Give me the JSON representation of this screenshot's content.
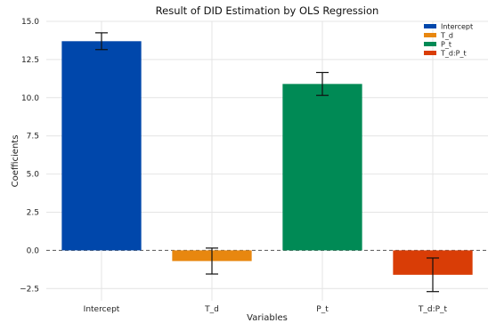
{
  "chart_data": {
    "type": "bar",
    "title": "Result of DID Estimation by OLS Regression",
    "xlabel": "Variables",
    "ylabel": "Coefficients",
    "categories": [
      "Intercept",
      "T_d",
      "P_t",
      "T_d:P_t"
    ],
    "values": [
      13.7,
      -0.7,
      10.9,
      -1.6
    ],
    "error": [
      0.55,
      0.85,
      0.75,
      1.1
    ],
    "colors": [
      "#0047ab",
      "#e8870f",
      "#008a55",
      "#d93d06"
    ],
    "ylim": [
      -3.3,
      15.0
    ],
    "yticks": [
      -2.5,
      0.0,
      2.5,
      5.0,
      7.5,
      10.0,
      12.5,
      15.0
    ],
    "ytick_labels": [
      "−2.5",
      "0.0",
      "2.5",
      "5.0",
      "7.5",
      "10.0",
      "12.5",
      "15.0"
    ],
    "grid": true,
    "zero_line": "dashed",
    "legend": {
      "position": "top-right",
      "entries": [
        "Intercept",
        "T_d",
        "P_t",
        "T_d:P_t"
      ]
    }
  }
}
